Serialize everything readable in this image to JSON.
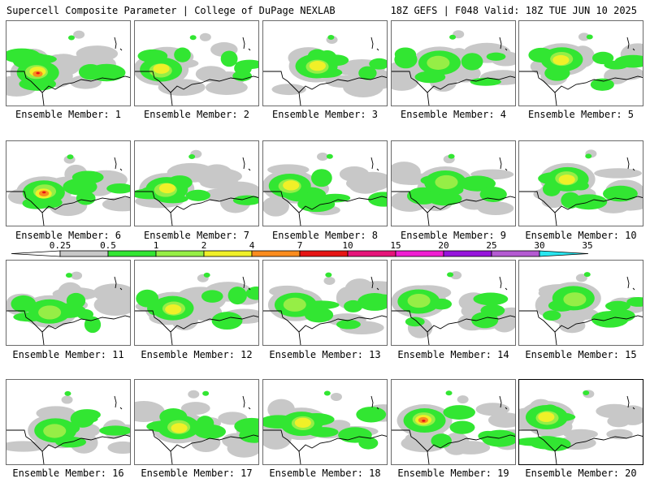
{
  "header": {
    "left": "Supercell Composite Parameter | College of DuPage NEXLAB",
    "right": "18Z GEFS | F048 Valid: 18Z TUE JUN 10 2025"
  },
  "member_prefix": "Ensemble Member: ",
  "members": [
    {
      "label": "Ensemble Member: 1",
      "peak": "10"
    },
    {
      "label": "Ensemble Member: 2",
      "peak": "4"
    },
    {
      "label": "Ensemble Member: 3",
      "peak": "4"
    },
    {
      "label": "Ensemble Member: 4",
      "peak": "2"
    },
    {
      "label": "Ensemble Member: 5",
      "peak": "4"
    },
    {
      "label": "Ensemble Member: 6",
      "peak": "10"
    },
    {
      "label": "Ensemble Member: 7",
      "peak": "4"
    },
    {
      "label": "Ensemble Member: 8",
      "peak": "4"
    },
    {
      "label": "Ensemble Member: 9",
      "peak": "2"
    },
    {
      "label": "Ensemble Member: 10",
      "peak": "4"
    },
    {
      "label": "Ensemble Member: 11",
      "peak": "2"
    },
    {
      "label": "Ensemble Member: 12",
      "peak": "4"
    },
    {
      "label": "Ensemble Member: 13",
      "peak": "2"
    },
    {
      "label": "Ensemble Member: 14",
      "peak": "2"
    },
    {
      "label": "Ensemble Member: 15",
      "peak": "2"
    },
    {
      "label": "Ensemble Member: 16",
      "peak": "2"
    },
    {
      "label": "Ensemble Member: 17",
      "peak": "4"
    },
    {
      "label": "Ensemble Member: 18",
      "peak": "4"
    },
    {
      "label": "Ensemble Member: 19",
      "peak": "10"
    },
    {
      "label": "Ensemble Member: 20",
      "peak": "4"
    }
  ],
  "legend": {
    "ticks": [
      "0.25",
      "0.5",
      "1",
      "2",
      "4",
      "7",
      "10",
      "15",
      "20",
      "25",
      "30",
      "35"
    ],
    "colors": [
      "#c8c8c8",
      "#32e632",
      "#96ee46",
      "#f0f028",
      "#fa8c1e",
      "#e61414",
      "#e6147a",
      "#f01ed2",
      "#9614dc",
      "#b45ad2",
      "#28e6f0"
    ]
  },
  "colors": {
    "gray": "#c8c8c8",
    "green": "#32e632",
    "lightgreen": "#96ee46",
    "yellow": "#f0f028",
    "orange": "#fa8c1e",
    "red": "#e61414"
  }
}
